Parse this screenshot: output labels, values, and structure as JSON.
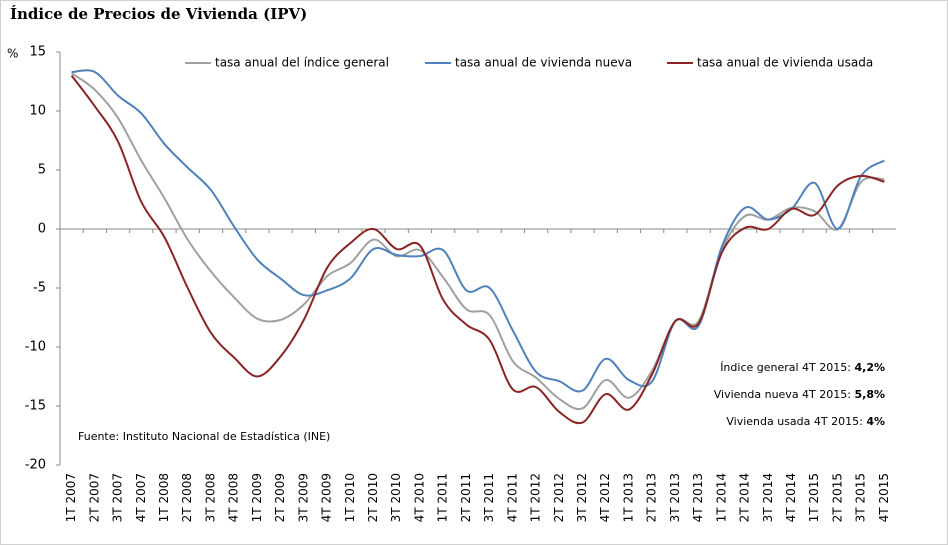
{
  "chart_data": {
    "type": "line",
    "title": "Índice de Precios de Vivienda (IPV)",
    "y_label": "%",
    "source": "Fuente: Instituto Nacional de Estadística (INE)",
    "categories": [
      "1T 2007",
      "2T 2007",
      "3T 2007",
      "4T 2007",
      "1T 2008",
      "2T 2008",
      "3T 2008",
      "4T 2008",
      "1T 2009",
      "2T 2009",
      "3T 2009",
      "4T 2009",
      "1T 2010",
      "2T 2010",
      "3T 2010",
      "4T 2010",
      "1T 2011",
      "2T 2011",
      "3T 2011",
      "4T 2011",
      "1T 2012",
      "2T 2012",
      "3T 2012",
      "4T 2012",
      "1T 2013",
      "2T 2013",
      "3T 2013",
      "4T 2013",
      "1T 2014",
      "2T 2014",
      "3T 2014",
      "4T 2014",
      "1T 2015",
      "2T 2015",
      "3T 2015",
      "4T 2015"
    ],
    "series": [
      {
        "name": "tasa anual del índice general",
        "color": "#a0a0a0",
        "values": [
          13.2,
          11.8,
          9.4,
          5.8,
          2.6,
          -0.9,
          -3.6,
          -5.8,
          -7.6,
          -7.7,
          -6.4,
          -4.0,
          -2.9,
          -0.9,
          -2.3,
          -1.8,
          -4.1,
          -6.8,
          -7.3,
          -11.2,
          -12.6,
          -14.4,
          -15.2,
          -12.8,
          -14.3,
          -12.0,
          -7.8,
          -7.8,
          -1.8,
          1.1,
          0.8,
          1.8,
          1.5,
          0.0,
          4.0,
          4.2
        ]
      },
      {
        "name": "tasa anual de vivienda nueva",
        "color": "#4f81bd",
        "values": [
          13.3,
          13.3,
          11.3,
          9.8,
          7.2,
          5.2,
          3.3,
          0.2,
          -2.6,
          -4.2,
          -5.6,
          -5.2,
          -4.2,
          -1.7,
          -2.2,
          -2.3,
          -1.8,
          -5.2,
          -5.0,
          -8.6,
          -12.1,
          -12.9,
          -13.7,
          -11.0,
          -12.8,
          -12.9,
          -7.8,
          -8.2,
          -1.5,
          1.8,
          0.8,
          1.7,
          3.9,
          0.0,
          4.5,
          5.8
        ]
      },
      {
        "name": "tasa anual de vivienda usada",
        "color": "#8b2525",
        "values": [
          13.0,
          10.4,
          7.4,
          2.3,
          -0.7,
          -5.0,
          -8.8,
          -10.9,
          -12.5,
          -10.8,
          -7.7,
          -3.3,
          -1.2,
          0.0,
          -1.7,
          -1.4,
          -6.0,
          -8.1,
          -9.4,
          -13.6,
          -13.4,
          -15.5,
          -16.4,
          -14.0,
          -15.3,
          -12.3,
          -7.8,
          -8.0,
          -2.0,
          0.1,
          0.0,
          1.7,
          1.2,
          3.7,
          4.5,
          4.0
        ]
      }
    ],
    "annotations": [
      {
        "label": "Índice general 4T 2015:",
        "value": "4,2%"
      },
      {
        "label": "Vivienda nueva 4T 2015:",
        "value": "5,8%"
      },
      {
        "label": "Vivienda usada 4T 2015:",
        "value": "4%"
      }
    ],
    "ylim": [
      -20,
      15
    ],
    "yticks": [
      -20,
      -15,
      -10,
      -5,
      0,
      5,
      10,
      15
    ],
    "grid": false
  }
}
